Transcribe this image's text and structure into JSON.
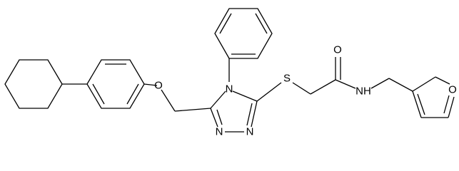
{
  "atoms": {
    "ether_o": "O",
    "n4": "N",
    "n1": "N",
    "n2": "N",
    "s": "S",
    "carbonyl_o": "O",
    "nh": "NH",
    "furan_o": "O"
  }
}
